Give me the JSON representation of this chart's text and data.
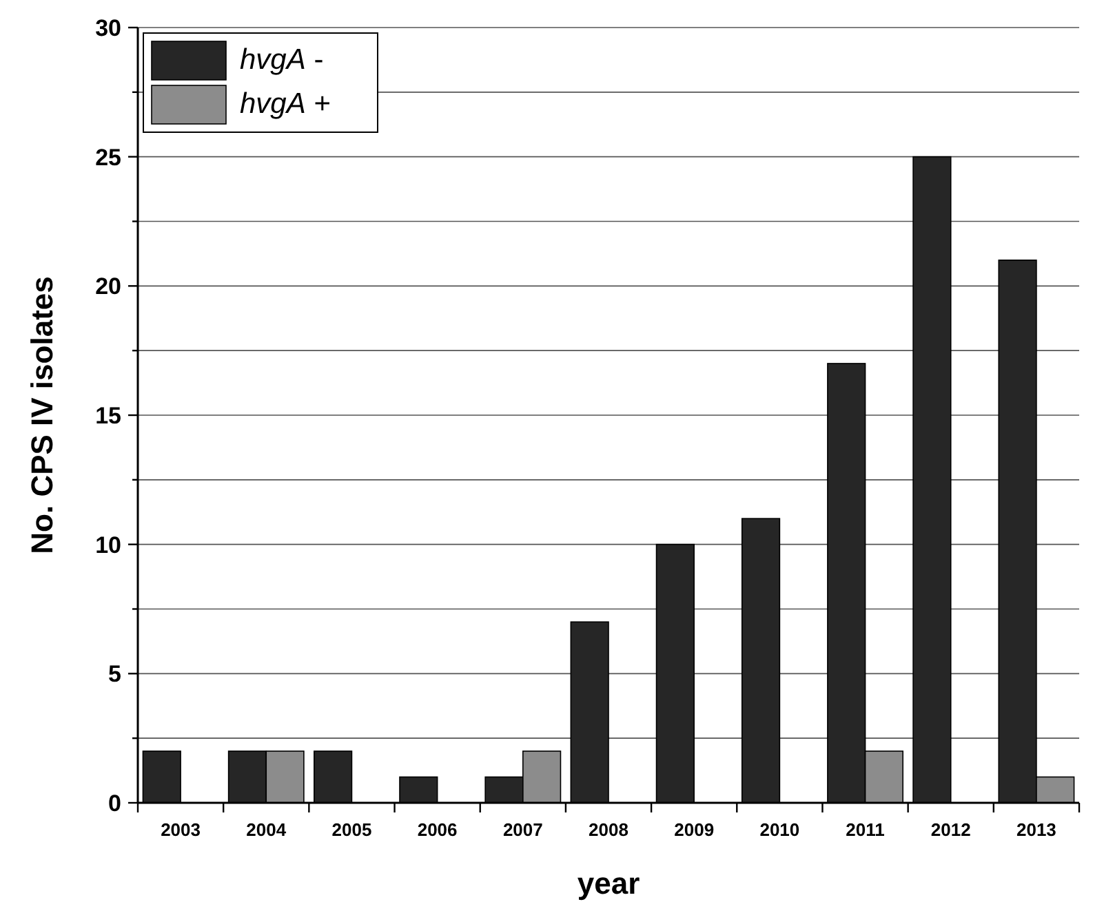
{
  "chart_data": {
    "type": "bar",
    "xlabel": "year",
    "ylabel": "No. CPS IV isolates",
    "categories": [
      "2003",
      "2004",
      "2005",
      "2006",
      "2007",
      "2008",
      "2009",
      "2010",
      "2011",
      "2012",
      "2013"
    ],
    "series": [
      {
        "name": "hvgA -",
        "color": "#262626",
        "values": [
          2,
          2,
          2,
          1,
          1,
          7,
          10,
          11,
          17,
          25,
          21
        ]
      },
      {
        "name": "hvgA +",
        "color": "#8c8c8c",
        "values": [
          0,
          2,
          0,
          0,
          2,
          0,
          0,
          0,
          2,
          0,
          1
        ]
      }
    ],
    "ylim": [
      0,
      30
    ],
    "yticks": [
      0,
      {
        "value": 2.5,
        "label": null
      },
      5,
      {
        "value": 7.5,
        "label": null
      },
      10,
      {
        "value": 12.5,
        "label": null
      },
      15,
      {
        "value": 17.5,
        "label": null
      },
      20,
      {
        "value": 22.5,
        "label": null
      },
      25,
      {
        "value": 27.5,
        "label": null
      },
      30
    ],
    "grid": "y",
    "legend": "top left"
  }
}
